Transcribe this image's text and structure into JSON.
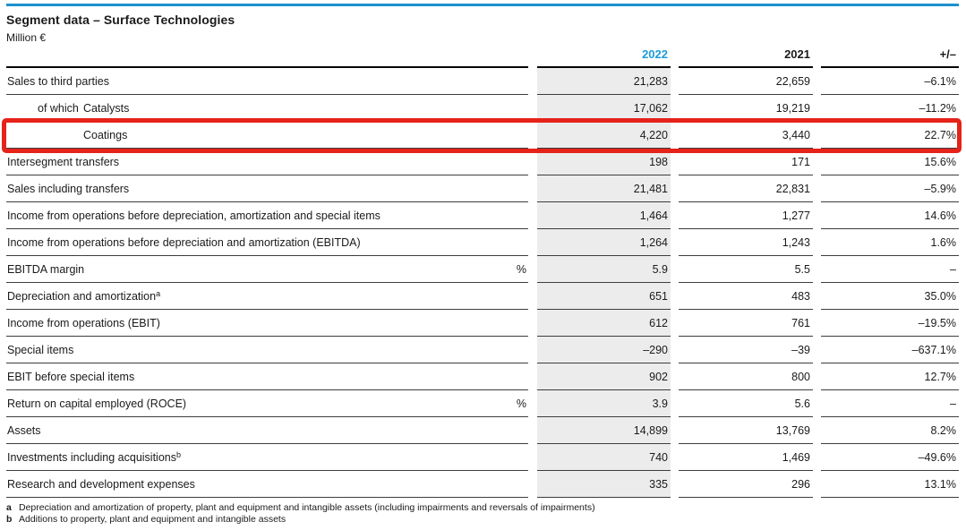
{
  "header": {
    "title": "Segment data – Surface Technologies",
    "unit": "Million €"
  },
  "colors": {
    "accent": "#1E9CD7",
    "topline": "#1C91CE",
    "highlight_box": "#E5231B",
    "column_2022_background": "#ECECEC"
  },
  "table": {
    "columns": [
      "2022",
      "2021",
      "+/–"
    ],
    "rows": [
      {
        "label": "Sales to third parties",
        "v2022": "21,283",
        "v2021": "22,659",
        "change": "–6.1%"
      },
      {
        "indent": 1,
        "prefix": "of which",
        "label": "Catalysts",
        "v2022": "17,062",
        "v2021": "19,219",
        "change": "–11.2%"
      },
      {
        "indent": 2,
        "label": "Coatings",
        "v2022": "4,220",
        "v2021": "3,440",
        "change": "22.7%",
        "highlighted": true
      },
      {
        "label": "Intersegment transfers",
        "v2022": "198",
        "v2021": "171",
        "change": "15.6%"
      },
      {
        "label": "Sales including transfers",
        "v2022": "21,481",
        "v2021": "22,831",
        "change": "–5.9%"
      },
      {
        "label": "Income from operations before depreciation, amortization and special items",
        "v2022": "1,464",
        "v2021": "1,277",
        "change": "14.6%"
      },
      {
        "label": "Income from operations before depreciation and amortization (EBITDA)",
        "v2022": "1,264",
        "v2021": "1,243",
        "change": "1.6%"
      },
      {
        "label": "EBITDA margin",
        "unit": "%",
        "v2022": "5.9",
        "v2021": "5.5",
        "change": "–"
      },
      {
        "label": "Depreciation and amortization",
        "sup": "a",
        "v2022": "651",
        "v2021": "483",
        "change": "35.0%"
      },
      {
        "label": "Income from operations (EBIT)",
        "v2022": "612",
        "v2021": "761",
        "change": "–19.5%"
      },
      {
        "label": "Special items",
        "v2022": "–290",
        "v2021": "–39",
        "change": "–637.1%"
      },
      {
        "label": "EBIT before special items",
        "v2022": "902",
        "v2021": "800",
        "change": "12.7%"
      },
      {
        "label": "Return on capital employed (ROCE)",
        "unit": "%",
        "v2022": "3.9",
        "v2021": "5.6",
        "change": "–"
      },
      {
        "label": "Assets",
        "v2022": "14,899",
        "v2021": "13,769",
        "change": "8.2%"
      },
      {
        "label": "Investments including acquisitions",
        "sup": "b",
        "v2022": "740",
        "v2021": "1,469",
        "change": "–49.6%"
      },
      {
        "label": "Research and development expenses",
        "v2022": "335",
        "v2021": "296",
        "change": "13.1%"
      }
    ]
  },
  "footnotes": [
    {
      "marker": "a",
      "text": "Depreciation and amortization of property, plant and equipment and intangible assets (including impairments and reversals of impairments)"
    },
    {
      "marker": "b",
      "text": "Additions to property, plant and equipment and intangible assets"
    }
  ]
}
